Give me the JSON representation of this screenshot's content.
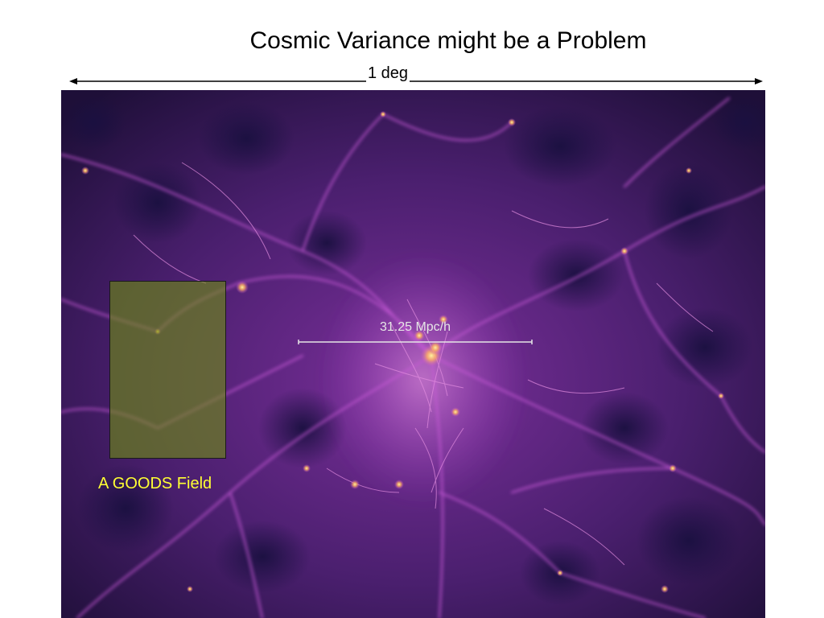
{
  "slide": {
    "title": "Cosmic Variance might be a Problem",
    "angular_scale_label": "1 deg"
  },
  "simulation_image": {
    "icon": "cosmic-web-simulation",
    "colors": {
      "void": "#24123a",
      "filament": "#b04fc8",
      "node": "#ffd27a",
      "goods_overlay": "#7a9a1a",
      "goods_label": "#ffff33",
      "inner_scale_text": "#e6e6e6"
    },
    "comoving_scale_label": "31.25 Mpc/h",
    "field_label": "A GOODS Field"
  }
}
